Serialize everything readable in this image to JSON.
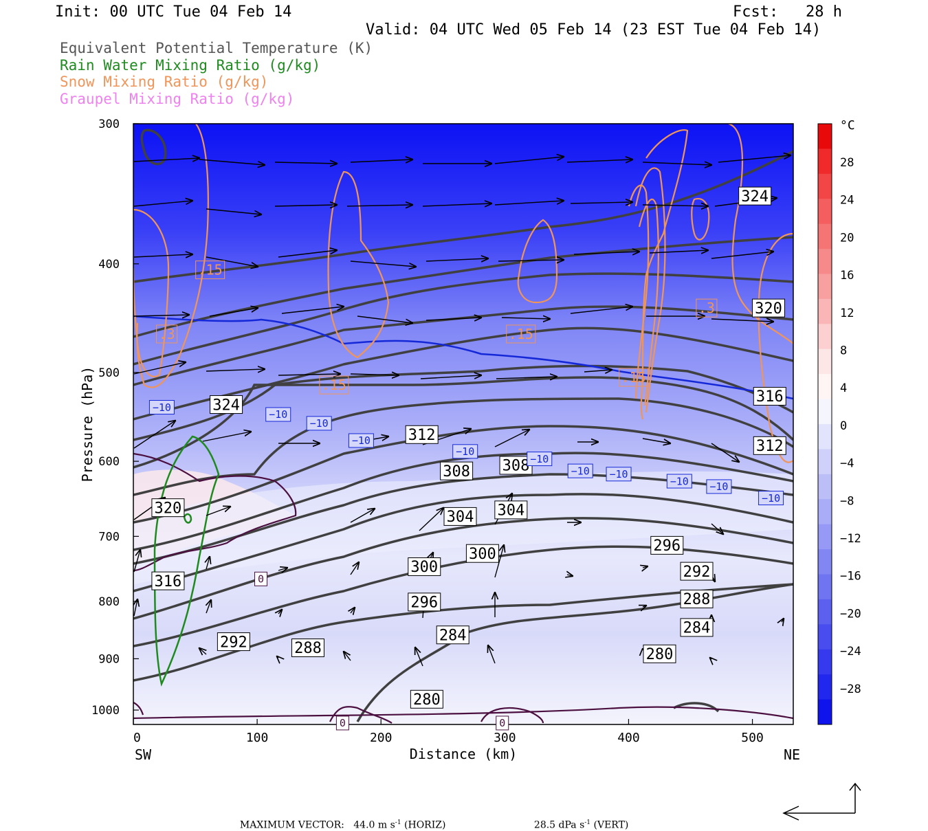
{
  "header": {
    "init": "Init: 00 UTC Tue 04 Feb 14",
    "fcst": "Fcst:   28 h",
    "valid": "Valid: 04 UTC Wed 05 Feb 14 (23 EST Tue 04 Feb 14)"
  },
  "fields": [
    {
      "label": "Equivalent Potential Temperature (K)",
      "color": "#555555"
    },
    {
      "label": "Rain Water Mixing Ratio (g/kg)",
      "color": "#1f8a1f"
    },
    {
      "label": "Snow Mixing Ratio (g/kg)",
      "color": "#f0955a"
    },
    {
      "label": "Graupel Mixing Ratio (g/kg)",
      "color": "#ee82ee"
    }
  ],
  "footer": {
    "prefix": "MAXIMUM VECTOR:",
    "horiz_value": "44.0 m s",
    "horiz_exp": "-1",
    "horiz_tag": "(HORIZ)",
    "vert_value": "28.5 dPa s",
    "vert_exp": "-1",
    "vert_tag": "(VERT)"
  },
  "chart_data": {
    "type": "cross-section",
    "xlabel": "Distance (km)",
    "ylabel": "Pressure (hPa)",
    "xlim": [
      0,
      533
    ],
    "ylim": [
      1030,
      300
    ],
    "y_scale": "log",
    "x_ticks": [
      "0",
      "100",
      "200",
      "300",
      "400",
      "500"
    ],
    "y_ticks": [
      "300",
      "400",
      "500",
      "600",
      "700",
      "800",
      "900",
      "1000"
    ],
    "x_end_labels": {
      "left": "SW",
      "right": "NE"
    },
    "colorbar": {
      "unit": "°C",
      "labels": [
        "28",
        "24",
        "20",
        "16",
        "12",
        "8",
        "4",
        "0",
        "−4",
        "−8",
        "−12",
        "−16",
        "−20",
        "−24",
        "−28"
      ]
    },
    "theta_e_labels": [
      {
        "text": "324",
        "x": 75,
        "p": 534
      },
      {
        "text": "324",
        "x": 502,
        "p": 348
      },
      {
        "text": "320",
        "x": 513,
        "p": 438
      },
      {
        "text": "316",
        "x": 514,
        "p": 525
      },
      {
        "text": "312",
        "x": 233,
        "p": 568
      },
      {
        "text": "312",
        "x": 514,
        "p": 581
      },
      {
        "text": "308",
        "x": 261,
        "p": 612
      },
      {
        "text": "308",
        "x": 309,
        "p": 605
      },
      {
        "text": "304",
        "x": 264,
        "p": 672
      },
      {
        "text": "304",
        "x": 305,
        "p": 663
      },
      {
        "text": "300",
        "x": 235,
        "p": 745
      },
      {
        "text": "300",
        "x": 282,
        "p": 725
      },
      {
        "text": "296",
        "x": 235,
        "p": 801
      },
      {
        "text": "296",
        "x": 431,
        "p": 713
      },
      {
        "text": "292",
        "x": 455,
        "p": 752
      },
      {
        "text": "292",
        "x": 81,
        "p": 869
      },
      {
        "text": "288",
        "x": 455,
        "p": 796
      },
      {
        "text": "288",
        "x": 141,
        "p": 880
      },
      {
        "text": "284",
        "x": 258,
        "p": 857
      },
      {
        "text": "284",
        "x": 455,
        "p": 844
      },
      {
        "text": "280",
        "x": 425,
        "p": 891
      },
      {
        "text": "280",
        "x": 237,
        "p": 978
      },
      {
        "text": "320",
        "x": 28,
        "p": 660
      },
      {
        "text": "316",
        "x": 28,
        "p": 767
      }
    ],
    "temperature_labels": [
      {
        "text": "−10",
        "x": 23,
        "p": 537
      },
      {
        "text": "−10",
        "x": 117,
        "p": 545
      },
      {
        "text": "−10",
        "x": 150,
        "p": 555
      },
      {
        "text": "−10",
        "x": 184,
        "p": 575
      },
      {
        "text": "−10",
        "x": 268,
        "p": 588
      },
      {
        "text": "−10",
        "x": 328,
        "p": 597
      },
      {
        "text": "−10",
        "x": 361,
        "p": 612
      },
      {
        "text": "−10",
        "x": 392,
        "p": 616
      },
      {
        "text": "−10",
        "x": 441,
        "p": 625
      },
      {
        "text": "−10",
        "x": 473,
        "p": 632
      },
      {
        "text": "−10",
        "x": 515,
        "p": 647
      }
    ],
    "zero_labels": [
      {
        "text": "0",
        "x": 103,
        "p": 764
      },
      {
        "text": "0",
        "x": 169,
        "p": 1027
      },
      {
        "text": "0",
        "x": 298,
        "p": 1027
      }
    ],
    "snow_labels": [
      {
        "text": ".15",
        "x": 62,
        "p": 405
      },
      {
        "text": ".3",
        "x": 27,
        "p": 462
      },
      {
        "text": ".15",
        "x": 162,
        "p": 513
      },
      {
        "text": ".15",
        "x": 313,
        "p": 462
      },
      {
        "text": ".15",
        "x": 404,
        "p": 505
      },
      {
        "text": ".3",
        "x": 463,
        "p": 438
      }
    ]
  }
}
